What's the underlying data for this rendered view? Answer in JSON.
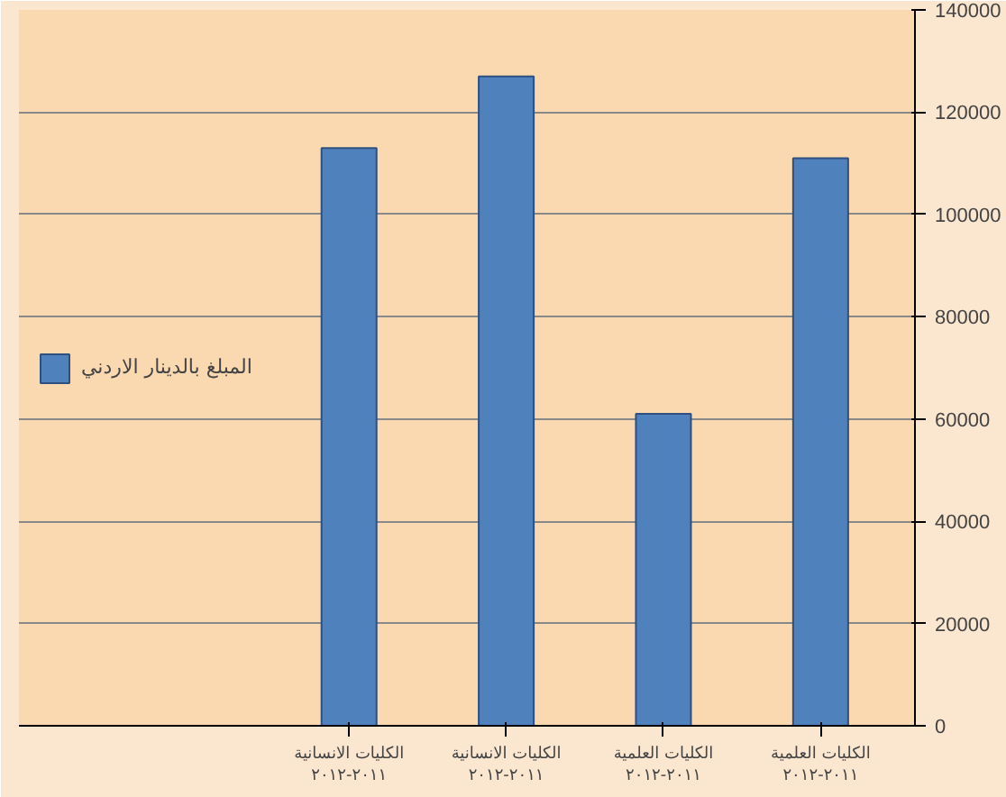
{
  "chart_data": {
    "type": "bar",
    "categories": [
      "الكليات الانسانية\n٢٠١١-٢٠١٢",
      "الكليات الانسانية\n٢٠١١-٢٠١٢",
      "الكليات العلمية\n٢٠١١-٢٠١٢",
      "الكليات العلمية\n٢٠١١-٢٠١٢"
    ],
    "series": [
      {
        "name": "المبلغ بالدينار الاردني",
        "color": "#4f81bd",
        "values": [
          113000,
          127000,
          61000,
          111000
        ]
      }
    ],
    "ylim": [
      0,
      140000
    ],
    "yticks": [
      0,
      20000,
      40000,
      60000,
      80000,
      100000,
      120000,
      140000
    ],
    "grid": "y",
    "legend": "left"
  }
}
